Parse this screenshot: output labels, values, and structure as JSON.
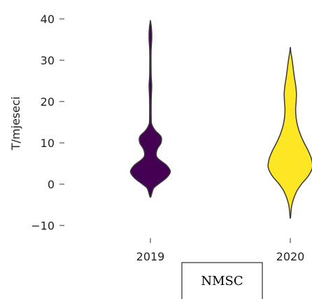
{
  "chart_data": {
    "type": "violin",
    "ylabel": "T/mjeseci",
    "ylim": [
      -10,
      40
    ],
    "yticks": [
      -10,
      0,
      10,
      20,
      30,
      40
    ],
    "ytick_labels": [
      "−10",
      "0",
      "10",
      "20",
      "30",
      "40"
    ],
    "categories": [
      "2019",
      "2020"
    ],
    "grid": false,
    "violins": [
      {
        "category": "2019",
        "color": "#440154",
        "min": -3,
        "max": 39.5,
        "density": [
          [
            -3,
            0.02
          ],
          [
            -1,
            0.12
          ],
          [
            0,
            0.3
          ],
          [
            1.5,
            0.6
          ],
          [
            3,
            0.75
          ],
          [
            4.5,
            0.62
          ],
          [
            6,
            0.32
          ],
          [
            7,
            0.22
          ],
          [
            8.5,
            0.26
          ],
          [
            10,
            0.4
          ],
          [
            11.5,
            0.4
          ],
          [
            13,
            0.18
          ],
          [
            14.5,
            0.05
          ],
          [
            16,
            0.03
          ],
          [
            20,
            0.03
          ],
          [
            22,
            0.04
          ],
          [
            24,
            0.05
          ],
          [
            26,
            0.03
          ],
          [
            28,
            0.025
          ],
          [
            32,
            0.025
          ],
          [
            35,
            0.05
          ],
          [
            36.5,
            0.05
          ],
          [
            38,
            0.035
          ],
          [
            39.5,
            0.005
          ]
        ]
      },
      {
        "category": "2020",
        "color": "#fde725",
        "min": -8,
        "max": 33,
        "density": [
          [
            -8,
            0.01
          ],
          [
            -5,
            0.06
          ],
          [
            -2,
            0.22
          ],
          [
            0,
            0.42
          ],
          [
            2,
            0.68
          ],
          [
            4,
            0.83
          ],
          [
            6,
            0.8
          ],
          [
            8,
            0.68
          ],
          [
            10,
            0.52
          ],
          [
            12,
            0.38
          ],
          [
            14,
            0.28
          ],
          [
            16,
            0.22
          ],
          [
            18,
            0.2
          ],
          [
            20,
            0.22
          ],
          [
            22,
            0.23
          ],
          [
            24,
            0.2
          ],
          [
            26,
            0.15
          ],
          [
            28,
            0.11
          ],
          [
            30,
            0.07
          ],
          [
            32,
            0.02
          ],
          [
            33,
            0.005
          ]
        ]
      }
    ],
    "legend": {
      "text": "NMSC",
      "placement": "bottom-center"
    }
  }
}
